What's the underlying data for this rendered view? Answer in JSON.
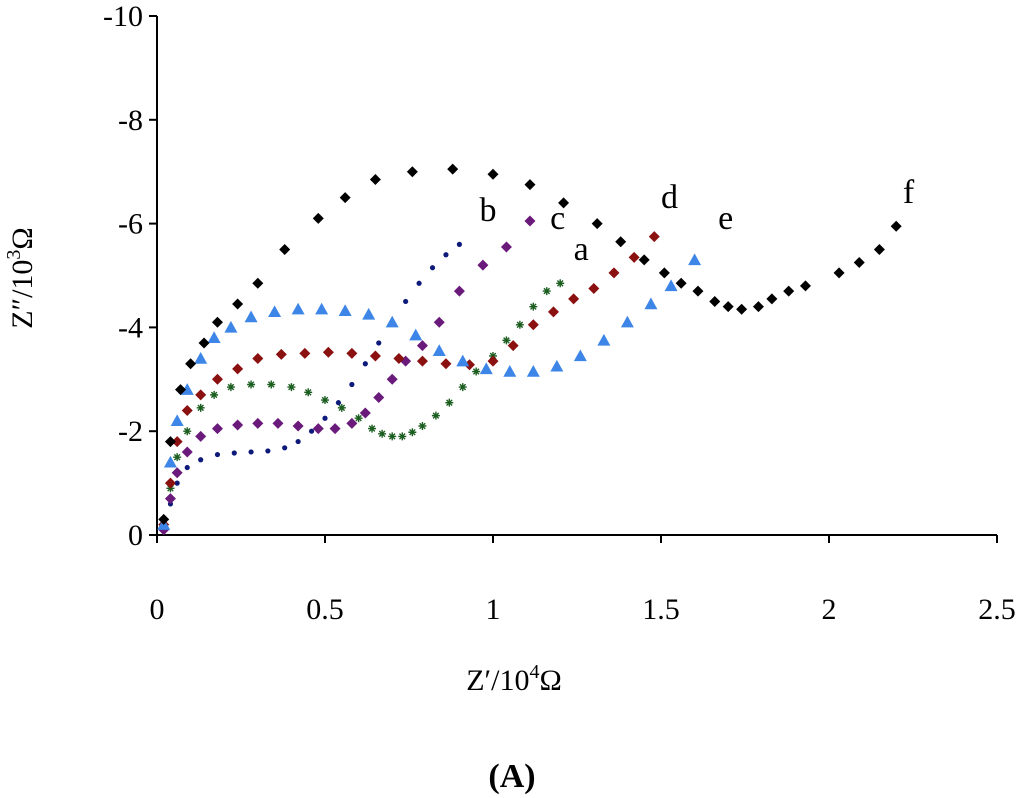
{
  "caption": "(A)",
  "chart_data": {
    "type": "scatter",
    "xlabel": {
      "base": "Z′/10",
      "exp": "4",
      "unit": "Ω"
    },
    "ylabel": {
      "base": "Z″/10",
      "exp": "3",
      "unit": "Ω"
    },
    "xlim": [
      0,
      2.5
    ],
    "ylim": [
      0,
      -10
    ],
    "xticks": [
      0,
      0.5,
      1,
      1.5,
      2,
      2.5
    ],
    "xtick_labels": [
      "0",
      "0.5",
      "1",
      "1.5",
      "2",
      "2.5"
    ],
    "yticks": [
      0,
      -2,
      -4,
      -6,
      -8,
      -10
    ],
    "ytick_labels": [
      "0",
      "-2",
      "-4",
      "-6",
      "-8",
      "-10"
    ],
    "series": [
      {
        "name": "a",
        "marker": "star",
        "color": "#1b5e20",
        "label_at": [
          1.24,
          -5.3
        ],
        "points": [
          [
            0.02,
            -0.2
          ],
          [
            0.04,
            -0.9
          ],
          [
            0.06,
            -1.5
          ],
          [
            0.09,
            -2.0
          ],
          [
            0.13,
            -2.45
          ],
          [
            0.17,
            -2.7
          ],
          [
            0.22,
            -2.85
          ],
          [
            0.28,
            -2.9
          ],
          [
            0.34,
            -2.9
          ],
          [
            0.4,
            -2.85
          ],
          [
            0.45,
            -2.75
          ],
          [
            0.5,
            -2.6
          ],
          [
            0.55,
            -2.45
          ],
          [
            0.6,
            -2.25
          ],
          [
            0.64,
            -2.05
          ],
          [
            0.67,
            -1.95
          ],
          [
            0.7,
            -1.9
          ],
          [
            0.73,
            -1.9
          ],
          [
            0.76,
            -1.98
          ],
          [
            0.79,
            -2.1
          ],
          [
            0.83,
            -2.3
          ],
          [
            0.87,
            -2.55
          ],
          [
            0.91,
            -2.85
          ],
          [
            0.95,
            -3.15
          ],
          [
            1.0,
            -3.45
          ],
          [
            1.04,
            -3.75
          ],
          [
            1.08,
            -4.05
          ],
          [
            1.12,
            -4.4
          ],
          [
            1.16,
            -4.7
          ],
          [
            1.2,
            -4.85
          ]
        ]
      },
      {
        "name": "b",
        "marker": "dot",
        "color": "#0d1a7a",
        "label_at": [
          0.96,
          -6.05
        ],
        "points": [
          [
            0.02,
            -0.1
          ],
          [
            0.04,
            -0.6
          ],
          [
            0.06,
            -1.0
          ],
          [
            0.09,
            -1.3
          ],
          [
            0.13,
            -1.45
          ],
          [
            0.18,
            -1.55
          ],
          [
            0.23,
            -1.58
          ],
          [
            0.28,
            -1.6
          ],
          [
            0.33,
            -1.62
          ],
          [
            0.38,
            -1.68
          ],
          [
            0.42,
            -1.8
          ],
          [
            0.46,
            -2.0
          ],
          [
            0.5,
            -2.25
          ],
          [
            0.54,
            -2.55
          ],
          [
            0.58,
            -2.9
          ],
          [
            0.62,
            -3.3
          ],
          [
            0.66,
            -3.7
          ],
          [
            0.7,
            -4.1
          ],
          [
            0.74,
            -4.5
          ],
          [
            0.78,
            -4.85
          ],
          [
            0.82,
            -5.15
          ],
          [
            0.86,
            -5.4
          ],
          [
            0.9,
            -5.6
          ]
        ]
      },
      {
        "name": "c",
        "marker": "diamond",
        "color": "#6a1a7a",
        "label_at": [
          1.17,
          -5.9
        ],
        "points": [
          [
            0.02,
            -0.1
          ],
          [
            0.04,
            -0.7
          ],
          [
            0.06,
            -1.2
          ],
          [
            0.09,
            -1.6
          ],
          [
            0.13,
            -1.9
          ],
          [
            0.18,
            -2.05
          ],
          [
            0.24,
            -2.12
          ],
          [
            0.3,
            -2.15
          ],
          [
            0.36,
            -2.15
          ],
          [
            0.42,
            -2.1
          ],
          [
            0.48,
            -2.05
          ],
          [
            0.53,
            -2.05
          ],
          [
            0.58,
            -2.15
          ],
          [
            0.62,
            -2.35
          ],
          [
            0.66,
            -2.65
          ],
          [
            0.7,
            -3.0
          ],
          [
            0.74,
            -3.35
          ],
          [
            0.79,
            -3.65
          ],
          [
            0.84,
            -4.1
          ],
          [
            0.9,
            -4.7
          ],
          [
            0.97,
            -5.2
          ],
          [
            1.04,
            -5.55
          ],
          [
            1.11,
            -6.05
          ]
        ]
      },
      {
        "name": "d",
        "marker": "diamond",
        "color": "#8b1010",
        "label_at": [
          1.5,
          -6.3
        ],
        "points": [
          [
            0.02,
            -0.2
          ],
          [
            0.04,
            -1.0
          ],
          [
            0.06,
            -1.8
          ],
          [
            0.09,
            -2.4
          ],
          [
            0.13,
            -2.7
          ],
          [
            0.18,
            -3.0
          ],
          [
            0.24,
            -3.2
          ],
          [
            0.3,
            -3.4
          ],
          [
            0.37,
            -3.48
          ],
          [
            0.44,
            -3.5
          ],
          [
            0.51,
            -3.52
          ],
          [
            0.58,
            -3.5
          ],
          [
            0.65,
            -3.45
          ],
          [
            0.72,
            -3.4
          ],
          [
            0.79,
            -3.35
          ],
          [
            0.86,
            -3.3
          ],
          [
            0.93,
            -3.28
          ],
          [
            1.0,
            -3.35
          ],
          [
            1.06,
            -3.65
          ],
          [
            1.12,
            -4.05
          ],
          [
            1.18,
            -4.3
          ],
          [
            1.24,
            -4.55
          ],
          [
            1.3,
            -4.75
          ],
          [
            1.36,
            -5.05
          ],
          [
            1.42,
            -5.35
          ],
          [
            1.48,
            -5.75
          ]
        ]
      },
      {
        "name": "e",
        "marker": "triangle",
        "color": "#3d86e8",
        "label_at": [
          1.67,
          -5.9
        ],
        "points": [
          [
            0.02,
            -0.2
          ],
          [
            0.04,
            -1.4
          ],
          [
            0.06,
            -2.2
          ],
          [
            0.09,
            -2.8
          ],
          [
            0.13,
            -3.4
          ],
          [
            0.17,
            -3.8
          ],
          [
            0.22,
            -4.0
          ],
          [
            0.28,
            -4.2
          ],
          [
            0.35,
            -4.3
          ],
          [
            0.42,
            -4.35
          ],
          [
            0.49,
            -4.35
          ],
          [
            0.56,
            -4.32
          ],
          [
            0.63,
            -4.25
          ],
          [
            0.7,
            -4.1
          ],
          [
            0.77,
            -3.85
          ],
          [
            0.84,
            -3.55
          ],
          [
            0.91,
            -3.35
          ],
          [
            0.98,
            -3.2
          ],
          [
            1.05,
            -3.15
          ],
          [
            1.12,
            -3.15
          ],
          [
            1.19,
            -3.25
          ],
          [
            1.26,
            -3.45
          ],
          [
            1.33,
            -3.75
          ],
          [
            1.4,
            -4.1
          ],
          [
            1.47,
            -4.45
          ],
          [
            1.53,
            -4.8
          ],
          [
            1.6,
            -5.3
          ]
        ]
      },
      {
        "name": "f",
        "marker": "diamond",
        "color": "#000000",
        "label_at": [
          2.22,
          -6.4
        ],
        "points": [
          [
            0.02,
            -0.3
          ],
          [
            0.04,
            -1.8
          ],
          [
            0.07,
            -2.8
          ],
          [
            0.1,
            -3.3
          ],
          [
            0.14,
            -3.7
          ],
          [
            0.18,
            -4.1
          ],
          [
            0.24,
            -4.45
          ],
          [
            0.3,
            -4.85
          ],
          [
            0.38,
            -5.5
          ],
          [
            0.48,
            -6.1
          ],
          [
            0.56,
            -6.5
          ],
          [
            0.65,
            -6.85
          ],
          [
            0.76,
            -7.0
          ],
          [
            0.88,
            -7.05
          ],
          [
            1.0,
            -6.95
          ],
          [
            1.11,
            -6.75
          ],
          [
            1.21,
            -6.4
          ],
          [
            1.31,
            -6.0
          ],
          [
            1.38,
            -5.65
          ],
          [
            1.45,
            -5.3
          ],
          [
            1.51,
            -5.05
          ],
          [
            1.56,
            -4.85
          ],
          [
            1.61,
            -4.7
          ],
          [
            1.66,
            -4.5
          ],
          [
            1.7,
            -4.4
          ],
          [
            1.74,
            -4.35
          ],
          [
            1.79,
            -4.4
          ],
          [
            1.83,
            -4.55
          ],
          [
            1.88,
            -4.7
          ],
          [
            1.93,
            -4.8
          ],
          [
            2.03,
            -5.05
          ],
          [
            2.09,
            -5.25
          ],
          [
            2.15,
            -5.5
          ],
          [
            2.2,
            -5.95
          ]
        ]
      }
    ]
  }
}
